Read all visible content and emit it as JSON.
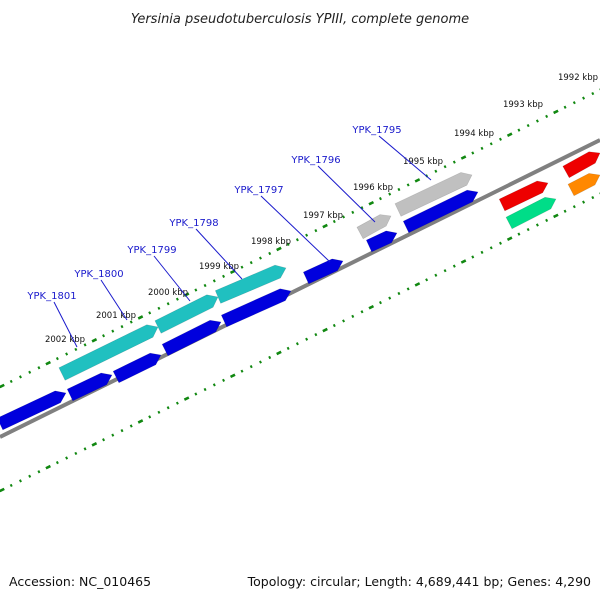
{
  "title": "Yersinia pseudotuberculosis YPIII, complete genome",
  "accession": "Accession: NC_010465",
  "topology": "Topology: circular; Length: 4,689,441 bp; Genes: 4,290",
  "ticks": [
    "1992 kbp",
    "1993 kbp",
    "1994 kbp",
    "1995 kbp",
    "1996 kbp",
    "1997 kbp",
    "1998 kbp",
    "1999 kbp",
    "2000 kbp",
    "2001 kbp",
    "2002 kbp"
  ],
  "genes": [
    {
      "name": "YPK_1795",
      "color": "#c0c0c0"
    },
    {
      "name": "YPK_1796",
      "color": "#c0c0c0"
    },
    {
      "name": "YPK_1797",
      "color": "#0000dd"
    },
    {
      "name": "YPK_1798",
      "color": "#20c0c0"
    },
    {
      "name": "YPK_1799",
      "color": "#20c0c0"
    },
    {
      "name": "YPK_1800",
      "color": "#20c0c0"
    },
    {
      "name": "YPK_1801",
      "color": "#20c0c0"
    }
  ],
  "colors": {
    "cds": "#0000dd",
    "rrna": "#20c0c0",
    "pseudo": "#c0c0c0",
    "red": "#ee0000",
    "green": "#00dd88",
    "orange": "#ff8800",
    "backbone": "#808080",
    "ticks": "#118811"
  }
}
